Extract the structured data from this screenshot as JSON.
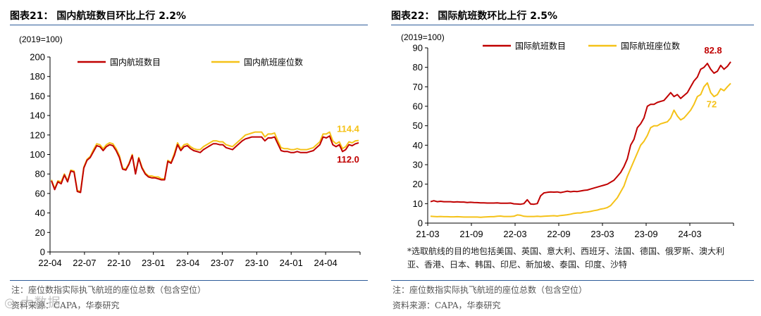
{
  "left": {
    "title": "图表21：  国内航班数目环比上行 2.2%",
    "note": "注：座位数指实际执飞航班的座位总数（包含空位）",
    "source": "资料来源：CAPA，华泰研究"
  },
  "right": {
    "title": "图表22：  国际航班数环比上行 2.5%",
    "note": "注：座位数指实际执飞航班的座位总数（包含空位）",
    "source": "资料来源：CAPA，华泰研究",
    "footnote": "*选取航线的目的地包括美国、英国、意大利、西班牙、法国、德国、俄罗斯、澳大利亚、香港、日本、韩国、印尼、新加坡、泰国、印度、沙特"
  },
  "watermark": "大数据",
  "chart_data": [
    {
      "type": "line",
      "unit_label": "(2019=100)",
      "ylim": [
        0,
        200
      ],
      "yticks": [
        "0",
        "20",
        "40",
        "60",
        "80",
        "100",
        "120",
        "140",
        "160",
        "180",
        "200"
      ],
      "xticks": [
        "22-04",
        "22-07",
        "22-10",
        "23-01",
        "23-04",
        "23-07",
        "23-10",
        "24-01",
        "24-04"
      ],
      "legend_position": "top",
      "colors": {
        "series1": "#c00000",
        "series2": "#f5c218"
      },
      "series": [
        {
          "name": "国内航班数目",
          "end_label": "112.0",
          "values": [
            73,
            64,
            72,
            70,
            79,
            72,
            83,
            82,
            62,
            61,
            86,
            94,
            97,
            103,
            109,
            108,
            104,
            108,
            110,
            109,
            104,
            97,
            85,
            84,
            90,
            99,
            80,
            96,
            86,
            80,
            77,
            76,
            76,
            75,
            74,
            74,
            93,
            91,
            99,
            110,
            104,
            108,
            109,
            106,
            104,
            103,
            102,
            105,
            107,
            109,
            111,
            111,
            110,
            110,
            107,
            106,
            105,
            108,
            111,
            114,
            116,
            117,
            118,
            118,
            118,
            118,
            114,
            117,
            117,
            118,
            111,
            104,
            103,
            103,
            102,
            102,
            103,
            102,
            102,
            102,
            103,
            104,
            107,
            110,
            118,
            117,
            119,
            110,
            108,
            110,
            103,
            105,
            110,
            109,
            111,
            112
          ]
        },
        {
          "name": "国内航班座位数",
          "end_label": "114.4",
          "values": [
            74,
            65,
            73,
            72,
            80,
            73,
            84,
            83,
            63,
            62,
            87,
            95,
            98,
            105,
            111,
            110,
            106,
            110,
            112,
            111,
            106,
            99,
            86,
            85,
            91,
            100,
            81,
            97,
            87,
            81,
            78,
            78,
            77,
            77,
            75,
            75,
            94,
            92,
            101,
            112,
            106,
            110,
            111,
            108,
            106,
            105,
            105,
            108,
            110,
            112,
            114,
            114,
            113,
            113,
            110,
            109,
            108,
            111,
            114,
            117,
            120,
            121,
            122,
            123,
            123,
            123,
            118,
            121,
            121,
            122,
            114,
            107,
            106,
            106,
            105,
            105,
            106,
            105,
            105,
            105,
            106,
            107,
            110,
            113,
            121,
            121,
            123,
            114,
            111,
            113,
            106,
            108,
            113,
            112,
            114,
            114.4
          ]
        }
      ]
    },
    {
      "type": "line",
      "unit_label": "(2019=100)",
      "ylim": [
        0,
        90
      ],
      "yticks": [
        "0",
        "10",
        "20",
        "30",
        "40",
        "50",
        "60",
        "70",
        "80",
        "90"
      ],
      "xticks": [
        "21-03",
        "21-09",
        "22-03",
        "22-09",
        "23-03",
        "23-09",
        "24-03"
      ],
      "legend_position": "top",
      "colors": {
        "series1": "#c00000",
        "series2": "#f5c218"
      },
      "series": [
        {
          "name": "国际航班数目",
          "end_label": "82.8",
          "values": [
            11,
            11.5,
            11,
            11.2,
            11,
            11,
            11,
            10.8,
            10.9,
            10.8,
            10.8,
            10.6,
            10.7,
            10.6,
            10.5,
            10.4,
            10.4,
            10.3,
            10.3,
            10.3,
            10.4,
            10.2,
            10.2,
            10.2,
            10.3,
            9.9,
            9.8,
            9.7,
            10,
            12,
            9.8,
            9.7,
            10,
            14,
            15.5,
            15.8,
            16,
            15.9,
            16,
            15.7,
            16,
            16.4,
            16.1,
            16.3,
            16.2,
            16.5,
            16.8,
            17,
            17.5,
            18,
            18.5,
            19,
            19.5,
            20,
            21,
            22,
            24,
            26,
            29,
            33,
            40,
            43,
            49,
            51,
            54,
            60,
            61,
            61,
            62,
            62.5,
            63,
            65,
            67,
            65,
            66,
            64,
            65.5,
            67,
            70,
            73,
            75,
            79,
            80,
            82,
            79,
            77,
            78,
            81,
            79,
            80.5,
            82.8
          ]
        },
        {
          "name": "国际航班座位数",
          "end_label": "72",
          "values": [
            3.5,
            3.4,
            3.3,
            3.4,
            3.3,
            3.3,
            3.2,
            3.2,
            3.3,
            3.2,
            3.1,
            3.1,
            3.1,
            3.1,
            3.1,
            3.0,
            3.1,
            3.2,
            3.3,
            3.3,
            3.5,
            3.6,
            3.4,
            3.4,
            3.4,
            3.5,
            4.2,
            4.0,
            3.5,
            3.4,
            3.4,
            3.4,
            3.5,
            3.4,
            3.5,
            3.6,
            3.7,
            3.8,
            3.6,
            3.9,
            4.1,
            4.3,
            4.6,
            5.0,
            5.2,
            5.2,
            5.6,
            5.7,
            6.0,
            6.4,
            6.7,
            7.2,
            7.5,
            8,
            9,
            11,
            13,
            16,
            19,
            24,
            28,
            32,
            36,
            40,
            42,
            45,
            49,
            50,
            50,
            51,
            51.5,
            52,
            54,
            58,
            55,
            53,
            54,
            56,
            58,
            61,
            65,
            66,
            70,
            72,
            67,
            65,
            66,
            69,
            68,
            70,
            71.8
          ]
        }
      ]
    }
  ]
}
